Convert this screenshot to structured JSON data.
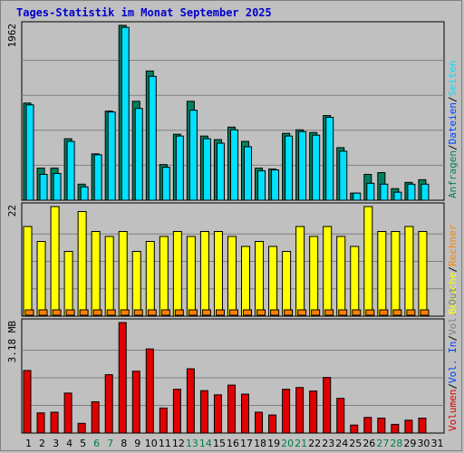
{
  "title": "Tages-Statistik im Monat September 2025",
  "colors": {
    "background": "#c0c0c0",
    "plot_background": "#c0c0c0",
    "anfragen": "#008060",
    "dateien": "#0040ff",
    "seiten": "#00e0ff",
    "besuche": "#ffff00",
    "rechner": "#ff8000",
    "vol_out": "#808080",
    "vol_in": "#0040ff",
    "volumen": "#e00000",
    "weekend": "#008040",
    "weekday": "#000000",
    "title": "#0000cc"
  },
  "chart_data": [
    {
      "type": "bar",
      "panel": "hits",
      "ymax_label": "1962",
      "ylim": [
        0,
        1962
      ],
      "legend": [
        {
          "text": "Anfragen",
          "color": "#008060"
        },
        {
          "text": "/",
          "color": "#000000"
        },
        {
          "text": "Dateien",
          "color": "#0040ff"
        },
        {
          "text": "/",
          "color": "#000000"
        },
        {
          "text": "Seiten",
          "color": "#00e0ff"
        }
      ],
      "categories": [
        "1",
        "2",
        "3",
        "4",
        "5",
        "6",
        "7",
        "8",
        "9",
        "10",
        "11",
        "12",
        "13",
        "14",
        "15",
        "16",
        "17",
        "18",
        "19",
        "20",
        "21",
        "22",
        "23",
        "24",
        "25",
        "26",
        "27",
        "28",
        "29",
        "30",
        "31"
      ],
      "series": [
        {
          "name": "Anfragen",
          "values": [
            1090,
            360,
            360,
            690,
            180,
            520,
            1000,
            1962,
            1110,
            1450,
            400,
            740,
            1110,
            720,
            680,
            820,
            660,
            360,
            350,
            750,
            790,
            760,
            950,
            590,
            80,
            290,
            310,
            130,
            200,
            230,
            0
          ]
        },
        {
          "name": "Seiten",
          "values": [
            1070,
            290,
            300,
            660,
            150,
            510,
            990,
            1940,
            1030,
            1390,
            370,
            720,
            1010,
            690,
            640,
            790,
            600,
            330,
            340,
            720,
            770,
            730,
            930,
            550,
            80,
            190,
            180,
            90,
            180,
            180,
            0
          ]
        }
      ]
    },
    {
      "type": "bar",
      "panel": "visits",
      "ymax_label": "22",
      "ylim": [
        0,
        22
      ],
      "legend": [
        {
          "text": "Besuche",
          "color": "#ffff00"
        },
        {
          "text": "/",
          "color": "#000000"
        },
        {
          "text": "Rechner",
          "color": "#ff8000"
        }
      ],
      "categories": [
        "1",
        "2",
        "3",
        "4",
        "5",
        "6",
        "7",
        "8",
        "9",
        "10",
        "11",
        "12",
        "13",
        "14",
        "15",
        "16",
        "17",
        "18",
        "19",
        "20",
        "21",
        "22",
        "23",
        "24",
        "25",
        "26",
        "27",
        "28",
        "29",
        "30",
        "31"
      ],
      "series": [
        {
          "name": "Besuche",
          "values": [
            18,
            15,
            22,
            13,
            21,
            17,
            16,
            17,
            13,
            15,
            16,
            17,
            16,
            17,
            17,
            16,
            14,
            15,
            14,
            13,
            18,
            16,
            18,
            16,
            14,
            22,
            17,
            17,
            18,
            17,
            0
          ]
        },
        {
          "name": "Rechner",
          "values": [
            1,
            1,
            1,
            1,
            1,
            1,
            1,
            1,
            1,
            1,
            1,
            1,
            1,
            1,
            1,
            1,
            1,
            1,
            1,
            1,
            1,
            1,
            1,
            1,
            1,
            1,
            1,
            1,
            1,
            1,
            0
          ]
        }
      ]
    },
    {
      "type": "bar",
      "panel": "volume",
      "ymax_label": "3.18 MB",
      "ylim": [
        0,
        3.18
      ],
      "legend": [
        {
          "text": "Volumen",
          "color": "#e00000"
        },
        {
          "text": "/",
          "color": "#000000"
        },
        {
          "text": "Vol. In",
          "color": "#0040ff"
        },
        {
          "text": "/",
          "color": "#000000"
        },
        {
          "text": "Vol. Out",
          "color": "#808080"
        }
      ],
      "categories": [
        "1",
        "2",
        "3",
        "4",
        "5",
        "6",
        "7",
        "8",
        "9",
        "10",
        "11",
        "12",
        "13",
        "14",
        "15",
        "16",
        "17",
        "18",
        "19",
        "20",
        "21",
        "22",
        "23",
        "24",
        "25",
        "26",
        "27",
        "28",
        "29",
        "30",
        "31"
      ],
      "weekend_days": [
        "6",
        "7",
        "13",
        "14",
        "20",
        "21",
        "27",
        "28"
      ],
      "series": [
        {
          "name": "Volumen",
          "values": [
            1.8,
            0.58,
            0.6,
            1.15,
            0.28,
            0.9,
            1.68,
            3.18,
            1.78,
            2.42,
            0.72,
            1.26,
            1.85,
            1.22,
            1.1,
            1.38,
            1.12,
            0.6,
            0.52,
            1.26,
            1.31,
            1.21,
            1.6,
            1.0,
            0.23,
            0.45,
            0.43,
            0.25,
            0.37,
            0.43,
            0
          ]
        }
      ]
    }
  ]
}
